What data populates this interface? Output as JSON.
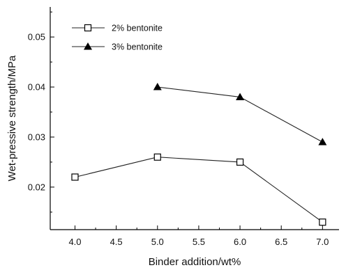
{
  "chart_data": {
    "type": "line",
    "title": "",
    "xlabel": "Binder addition/wt%",
    "ylabel": "Wet-pressive strength/MPa",
    "xlim": [
      3.7,
      7.2
    ],
    "ylim": [
      0.0115,
      0.056
    ],
    "x_ticks": [
      "4.0",
      "4.5",
      "5.0",
      "5.5",
      "6.0",
      "6.5",
      "7.0"
    ],
    "x_tick_values": [
      4.0,
      4.5,
      5.0,
      5.5,
      6.0,
      6.5,
      7.0
    ],
    "y_ticks": [
      "0.02",
      "0.03",
      "0.04",
      "0.05"
    ],
    "y_tick_values": [
      0.02,
      0.03,
      0.04,
      0.05
    ],
    "grid": false,
    "legend_position": "top-left",
    "series": [
      {
        "name": "2% bentonite",
        "marker": "open-square",
        "x": [
          4.0,
          5.0,
          6.0,
          7.0
        ],
        "y": [
          0.022,
          0.026,
          0.025,
          0.013
        ]
      },
      {
        "name": "3% bentonite",
        "marker": "filled-triangle",
        "x": [
          5.0,
          6.0,
          7.0
        ],
        "y": [
          0.04,
          0.038,
          0.029
        ]
      }
    ]
  }
}
